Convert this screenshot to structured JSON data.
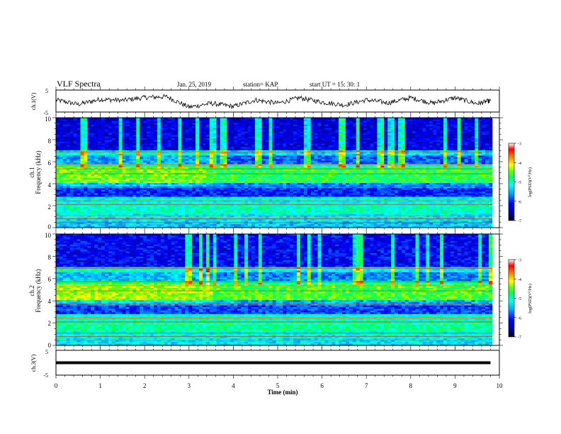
{
  "header": {
    "title": "VLF Spectra",
    "date": "Jan. 25, 2019",
    "station": "station= KAP",
    "start": "start  UT =   15: 30: 1"
  },
  "colors": {
    "waveform": "#000000",
    "colormap": [
      "#000000",
      "#00008b",
      "#0000ff",
      "#00aaff",
      "#00ffff",
      "#00ff66",
      "#66ff00",
      "#ffff00",
      "#ff8800",
      "#ff0000",
      "#ffffff"
    ]
  },
  "chart_data": [
    {
      "type": "line",
      "panel": "ch1-waveform",
      "ylabel": "ch.1(V)",
      "ylim": [
        -5,
        5
      ],
      "yticks": [
        "5",
        "-5"
      ],
      "xlim": [
        0,
        10
      ],
      "note_level": "oscillating signal around about -0.5 V over 0–9.8 min",
      "x": [
        0,
        0.5,
        1.0,
        1.5,
        2.0,
        2.5,
        3.0,
        3.5,
        4.0,
        4.5,
        5.0,
        5.5,
        6.0,
        6.5,
        7.0,
        7.5,
        8.0,
        8.5,
        9.0,
        9.5,
        9.8
      ],
      "y": [
        0.5,
        -1.5,
        0.8,
        0.3,
        1.6,
        2.0,
        -2.8,
        -1.0,
        -2.5,
        0.5,
        -1.0,
        1.5,
        -0.5,
        -1.8,
        0.5,
        -0.8,
        1.5,
        -1.0,
        1.5,
        -1.2,
        0.2
      ]
    },
    {
      "type": "heatmap",
      "panel": "ch1-spectrogram",
      "ylabel": "ch.1\nFrequency (kHz)",
      "ylim": [
        0,
        10
      ],
      "yticks": [
        "0",
        "2",
        "4",
        "6",
        "8",
        "10"
      ],
      "xlim": [
        0,
        10
      ],
      "colorbar": {
        "label": "log(PSD)(V²/Hz)",
        "ticks": [
          "-3",
          "-4",
          "-5",
          "-6",
          "-7"
        ],
        "range": [
          -7,
          -3
        ]
      }
    },
    {
      "type": "heatmap",
      "panel": "ch2-spectrogram",
      "ylabel": "ch.2\nFrequency (kHz)",
      "ylim": [
        0,
        10
      ],
      "yticks": [
        "0",
        "2",
        "4",
        "6",
        "8",
        "10"
      ],
      "xlim": [
        0,
        10
      ],
      "colorbar": {
        "label": "log(PSD)(V²/Hz)",
        "ticks": [
          "-3",
          "-4",
          "-5",
          "-6",
          "-7"
        ],
        "range": [
          -7,
          -3
        ]
      }
    },
    {
      "type": "line",
      "panel": "ch3-waveform",
      "ylabel": "ch.3(V)",
      "ylim": [
        -5,
        5
      ],
      "yticks": [
        "5",
        "-5"
      ],
      "xlim": [
        0,
        10
      ],
      "x": [
        0,
        9.8
      ],
      "y": [
        0,
        0
      ]
    }
  ],
  "xaxis": {
    "label": "Time (min)",
    "ticks": [
      "0",
      "1",
      "2",
      "3",
      "4",
      "5",
      "6",
      "7",
      "8",
      "9",
      "10"
    ]
  }
}
